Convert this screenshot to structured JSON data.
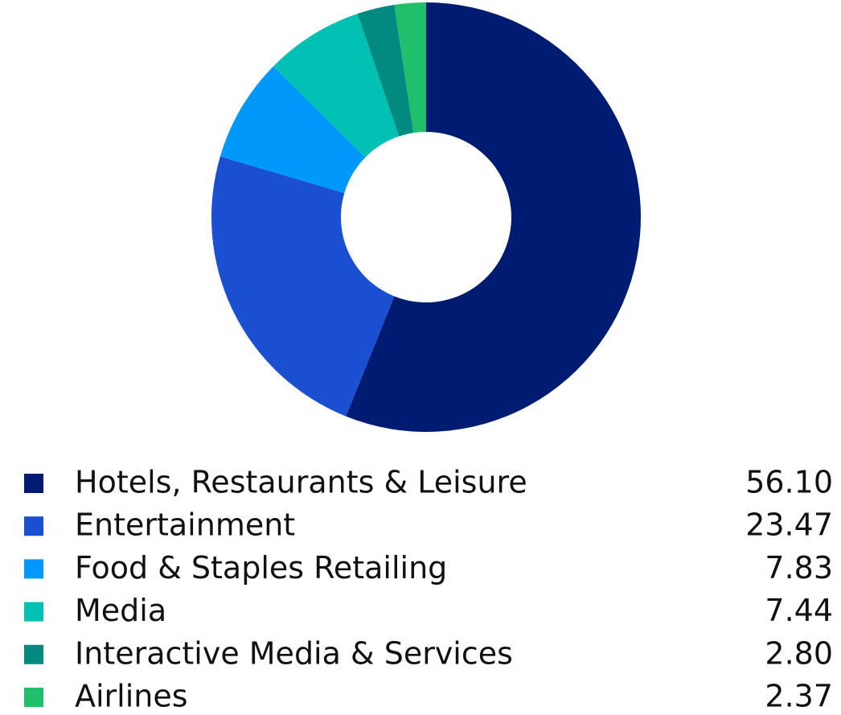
{
  "chart_data": {
    "type": "pie",
    "categories": [
      "Hotels, Restaurants & Leisure",
      "Entertainment",
      "Food & Staples Retailing",
      "Media",
      "Interactive Media & Services",
      "Airlines"
    ],
    "values": [
      56.1,
      23.47,
      7.83,
      7.44,
      2.8,
      2.37
    ],
    "value_labels": [
      "56.10",
      "23.47",
      "7.83",
      "7.44",
      "2.80",
      "2.37"
    ],
    "colors": [
      "#001c72",
      "#1a4fd2",
      "#0099fb",
      "#00c1b3",
      "#008a80",
      "#1fbf6c"
    ]
  }
}
